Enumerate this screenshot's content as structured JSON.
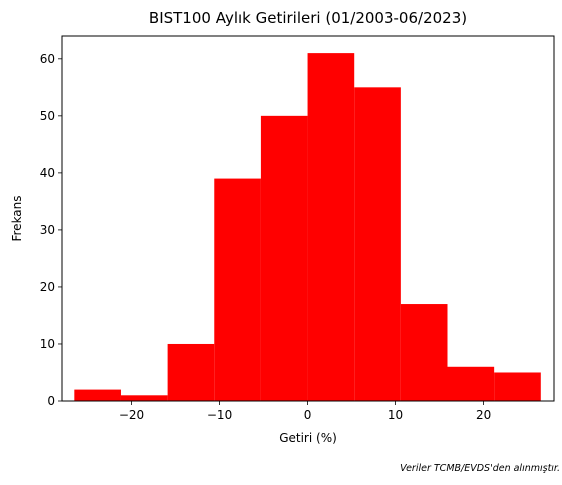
{
  "chart_data": {
    "type": "bar",
    "title": "BIST100 Aylık Getirileri (01/2003-06/2023)",
    "xlabel": "Getiri (%)",
    "ylabel": "Frekans",
    "xlim": [
      -27.9,
      28.0
    ],
    "ylim": [
      0,
      64
    ],
    "xticks": [
      -20,
      -10,
      0,
      10,
      20
    ],
    "xtick_labels": [
      "−20",
      "−10",
      "0",
      "10",
      "20"
    ],
    "yticks": [
      0,
      10,
      20,
      30,
      40,
      50,
      60
    ],
    "bin_edges": [
      -26.5,
      -21.2,
      -15.9,
      -10.6,
      -5.3,
      0,
      5.3,
      10.6,
      15.9,
      21.2,
      26.5
    ],
    "values": [
      2,
      1,
      10,
      39,
      50,
      61,
      55,
      17,
      6,
      5
    ],
    "bar_color": "#ff0000",
    "grid": false
  },
  "footnote": "Veriler TCMB/EVDS'den alınmıştır."
}
